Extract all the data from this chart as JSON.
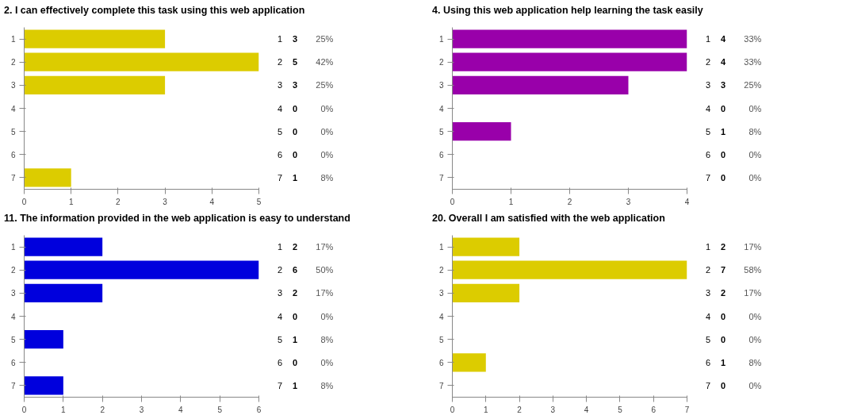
{
  "chart_data": [
    {
      "type": "bar",
      "orientation": "horizontal",
      "title": "2. I can effectively complete this task using this web application",
      "categories": [
        "1",
        "2",
        "3",
        "4",
        "5",
        "6",
        "7"
      ],
      "values": [
        3,
        5,
        3,
        0,
        0,
        0,
        1
      ],
      "color": "#dccc00",
      "xlim": [
        0,
        5
      ],
      "xticks": [
        0,
        1,
        2,
        3,
        4,
        5
      ],
      "data_labels": true,
      "grid": false,
      "annotations": [
        "25%",
        "42%",
        "25%",
        "0%",
        "0%",
        "0%",
        "8%"
      ]
    },
    {
      "type": "bar",
      "orientation": "horizontal",
      "title": "4. Using this web application help learning the task easily",
      "categories": [
        "1",
        "2",
        "3",
        "4",
        "5",
        "6",
        "7"
      ],
      "values": [
        4,
        4,
        3,
        0,
        1,
        0,
        0
      ],
      "color": "#9900aa",
      "xlim": [
        0,
        4
      ],
      "xticks": [
        0,
        1,
        2,
        3,
        4
      ],
      "data_labels": true,
      "grid": false,
      "annotations": [
        "33%",
        "33%",
        "25%",
        "0%",
        "8%",
        "0%",
        "0%"
      ]
    },
    {
      "type": "bar",
      "orientation": "horizontal",
      "title": "11. The information provided in the web application is easy to understand",
      "categories": [
        "1",
        "2",
        "3",
        "4",
        "5",
        "6",
        "7"
      ],
      "values": [
        2,
        6,
        2,
        0,
        1,
        0,
        1
      ],
      "color": "#0000dd",
      "xlim": [
        0,
        6
      ],
      "xticks": [
        0,
        1,
        2,
        3,
        4,
        5,
        6
      ],
      "data_labels": true,
      "grid": false,
      "annotations": [
        "17%",
        "50%",
        "17%",
        "0%",
        "8%",
        "0%",
        "8%"
      ]
    },
    {
      "type": "bar",
      "orientation": "horizontal",
      "title": "20. Overall I am satisfied with the web application",
      "categories": [
        "1",
        "2",
        "3",
        "4",
        "5",
        "6",
        "7"
      ],
      "values": [
        2,
        7,
        2,
        0,
        0,
        1,
        0
      ],
      "color": "#dccc00",
      "xlim": [
        0,
        7
      ],
      "xticks": [
        0,
        1,
        2,
        3,
        4,
        5,
        6,
        7
      ],
      "data_labels": true,
      "grid": false,
      "annotations": [
        "17%",
        "58%",
        "17%",
        "0%",
        "0%",
        "8%",
        "0%"
      ]
    }
  ]
}
